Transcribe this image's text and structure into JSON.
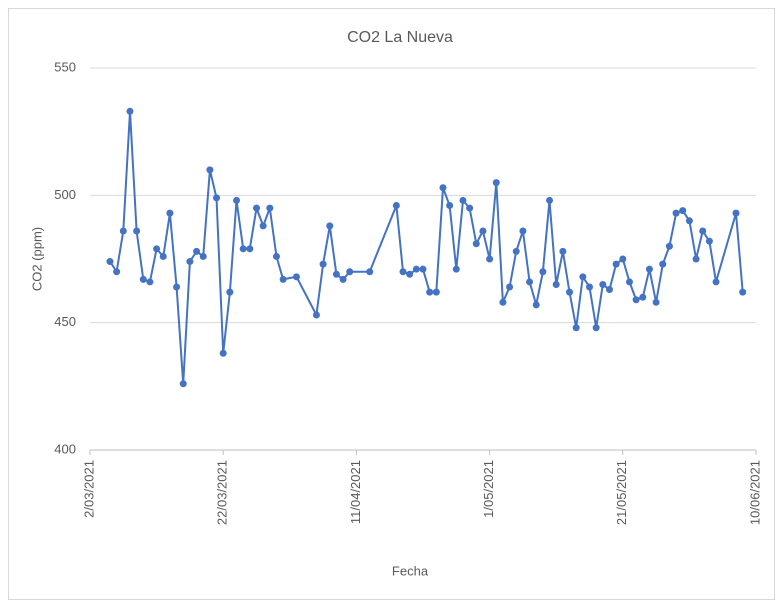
{
  "chart_data": {
    "type": "line",
    "title": "CO2 La Nueva",
    "x_label": "Fecha",
    "y_label": "CO2 (ppm)",
    "x": [
      "2021-03-05",
      "2021-03-06",
      "2021-03-07",
      "2021-03-08",
      "2021-03-09",
      "2021-03-10",
      "2021-03-11",
      "2021-03-12",
      "2021-03-13",
      "2021-03-14",
      "2021-03-15",
      "2021-03-16",
      "2021-03-17",
      "2021-03-18",
      "2021-03-19",
      "2021-03-20",
      "2021-03-21",
      "2021-03-22",
      "2021-03-23",
      "2021-03-24",
      "2021-03-25",
      "2021-03-26",
      "2021-03-27",
      "2021-03-28",
      "2021-03-29",
      "2021-03-30",
      "2021-03-31",
      "2021-04-02",
      "2021-04-05",
      "2021-04-06",
      "2021-04-07",
      "2021-04-08",
      "2021-04-09",
      "2021-04-10",
      "2021-04-13",
      "2021-04-17",
      "2021-04-18",
      "2021-04-19",
      "2021-04-20",
      "2021-04-21",
      "2021-04-22",
      "2021-04-23",
      "2021-04-24",
      "2021-04-25",
      "2021-04-26",
      "2021-04-27",
      "2021-04-28",
      "2021-04-29",
      "2021-04-30",
      "2021-05-01",
      "2021-05-02",
      "2021-05-03",
      "2021-05-04",
      "2021-05-05",
      "2021-05-06",
      "2021-05-07",
      "2021-05-08",
      "2021-05-09",
      "2021-05-10",
      "2021-05-11",
      "2021-05-12",
      "2021-05-13",
      "2021-05-14",
      "2021-05-15",
      "2021-05-16",
      "2021-05-17",
      "2021-05-18",
      "2021-05-19",
      "2021-05-20",
      "2021-05-21",
      "2021-05-22",
      "2021-05-23",
      "2021-05-24",
      "2021-05-25",
      "2021-05-26",
      "2021-05-27",
      "2021-05-28",
      "2021-05-29",
      "2021-05-30",
      "2021-05-31",
      "2021-06-01",
      "2021-06-02",
      "2021-06-03",
      "2021-06-04",
      "2021-06-07",
      "2021-06-08"
    ],
    "series": [
      {
        "name": "CO2 (ppm)",
        "color": "#4472c4",
        "values": [
          474,
          470,
          486,
          533,
          486,
          467,
          466,
          479,
          476,
          493,
          464,
          426,
          474,
          478,
          476,
          510,
          499,
          438,
          462,
          498,
          479,
          479,
          495,
          488,
          495,
          476,
          467,
          468,
          453,
          473,
          488,
          469,
          467,
          470,
          470,
          496,
          470,
          469,
          471,
          471,
          462,
          462,
          503,
          496,
          471,
          498,
          495,
          481,
          486,
          475,
          505,
          458,
          464,
          478,
          486,
          466,
          457,
          470,
          498,
          465,
          478,
          462,
          448,
          468,
          464,
          448,
          465,
          463,
          473,
          475,
          466,
          459,
          460,
          471,
          458,
          473,
          480,
          493,
          494,
          490,
          475,
          486,
          482,
          466,
          493,
          462
        ]
      }
    ],
    "xlim": [
      "2021-03-02",
      "2021-06-10"
    ],
    "xticks": [
      {
        "value": "2021-03-02",
        "label": "2/03/2021"
      },
      {
        "value": "2021-03-22",
        "label": "22/03/2021"
      },
      {
        "value": "2021-04-11",
        "label": "11/04/2021"
      },
      {
        "value": "2021-05-01",
        "label": "1/05/2021"
      },
      {
        "value": "2021-05-21",
        "label": "21/05/2021"
      },
      {
        "value": "2021-06-10",
        "label": "10/06/2021"
      }
    ],
    "ylim": [
      400,
      550
    ],
    "yticks": [
      400,
      450,
      500,
      550
    ],
    "grid": true
  }
}
